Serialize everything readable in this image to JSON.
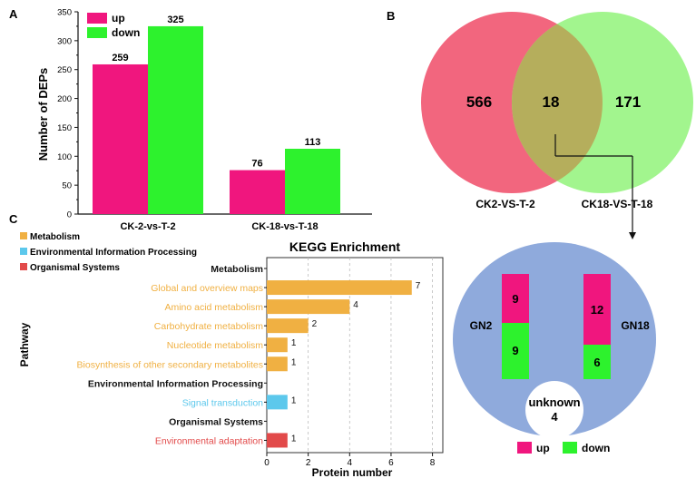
{
  "colors": {
    "up": "#f0167e",
    "down": "#2df22d",
    "venn_left": "#f2667e",
    "venn_right": "#9ef58a",
    "venn_overlap": "#b5ae5c",
    "circle_fill": "#8faadc",
    "metabolism": "#f0b042",
    "env_info": "#5cc8ec",
    "organismal": "#e24a4a",
    "black": "#111111"
  },
  "panel_a": {
    "letter": "A",
    "legend": {
      "up": "up",
      "down": "down"
    }
  },
  "panel_b": {
    "letter": "B",
    "left_count": "566",
    "overlap_count": "18",
    "right_count": "171",
    "left_label": "CK2-VS-T-2",
    "right_label": "CK18-VS-T-18",
    "detail": {
      "gn2_label": "GN2",
      "gn18_label": "GN18",
      "gn2_up": "9",
      "gn2_down": "9",
      "gn18_up": "12",
      "gn18_down": "6",
      "unknown_label": "unknown",
      "unknown_count": "4",
      "legend_up": "up",
      "legend_down": "down"
    }
  },
  "panel_c": {
    "letter": "C",
    "legend": [
      {
        "label": "Metabolism",
        "color": "#f0b042"
      },
      {
        "label": "Environmental Information Processing",
        "color": "#5cc8ec"
      },
      {
        "label": "Organismal Systems",
        "color": "#e24a4a"
      }
    ]
  },
  "chart_data": [
    {
      "type": "bar",
      "ylabel": "Number of DEPs",
      "xlabel": "",
      "categories": [
        "CK-2-vs-T-2",
        "CK-18-vs-T-18"
      ],
      "series": [
        {
          "name": "up",
          "values": [
            259,
            76
          ]
        },
        {
          "name": "down",
          "values": [
            325,
            113
          ]
        }
      ],
      "ylim": [
        0,
        350
      ],
      "yticks": [
        0,
        50,
        100,
        150,
        200,
        250,
        300,
        350
      ],
      "legend": "top-left"
    },
    {
      "type": "bar",
      "orientation": "horizontal",
      "title": "KEGG Enrichment",
      "xlabel": "Protein number",
      "ylabel": "Pathway",
      "xlim": [
        0,
        8.5
      ],
      "xticks": [
        0,
        2,
        4,
        6,
        8
      ],
      "grid": "vertical dashed",
      "rows": [
        {
          "label": "Metabolism",
          "value": null,
          "group": "header"
        },
        {
          "label": "Global and overview maps",
          "value": 7,
          "group": "metabolism"
        },
        {
          "label": "Amino acid metabolism",
          "value": 4,
          "group": "metabolism"
        },
        {
          "label": "Carbohydrate metabolism",
          "value": 2,
          "group": "metabolism"
        },
        {
          "label": "Nucleotide metabolism",
          "value": 1,
          "group": "metabolism"
        },
        {
          "label": "Biosynthesis of other secondary metabolites",
          "value": 1,
          "group": "metabolism"
        },
        {
          "label": "Environmental Information Processing",
          "value": null,
          "group": "header"
        },
        {
          "label": "Signal transduction",
          "value": 1,
          "group": "env_info"
        },
        {
          "label": "Organismal Systems",
          "value": null,
          "group": "header"
        },
        {
          "label": "Environmental adaptation",
          "value": 1,
          "group": "organismal"
        }
      ]
    }
  ]
}
